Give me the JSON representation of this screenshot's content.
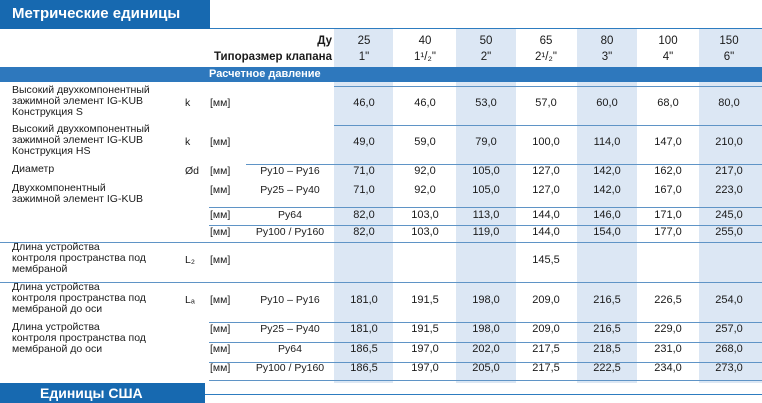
{
  "top_title": "Метрические единицы",
  "bottom_title": "Единицы США",
  "header": {
    "dn_label": "Ду",
    "dn_values": [
      "25",
      "40",
      "50",
      "65",
      "80",
      "100",
      "150"
    ],
    "size_label": "Типоразмер клапана",
    "size_values": [
      "1\"",
      "1¹/₂\"",
      "2\"",
      "2¹/₂\"",
      "3\"",
      "4\"",
      "6\""
    ]
  },
  "section_label": "Расчетное давление",
  "rows": [
    {
      "label": [
        "Высокий двухкомпонентный",
        "зажимной элемент IG-KUB",
        "Конструкция S"
      ],
      "symbol": "k",
      "unit": "[мм]",
      "pressure": "",
      "values": [
        "46,0",
        "46,0",
        "53,0",
        "57,0",
        "60,0",
        "68,0",
        "80,0"
      ]
    },
    {
      "label": [
        "Высокий двухкомпонентный",
        "зажимной элемент IG-KUB",
        "Конструкция HS"
      ],
      "symbol": "k",
      "unit": "[мм]",
      "pressure": "",
      "values": [
        "49,0",
        "59,0",
        "79,0",
        "100,0",
        "114,0",
        "147,0",
        "210,0"
      ]
    },
    {
      "label": [
        "Диаметр"
      ],
      "symbol": "Ød",
      "unit": "[мм]",
      "pressure": "Ру10 – Ру16",
      "values": [
        "71,0",
        "92,0",
        "105,0",
        "127,0",
        "142,0",
        "162,0",
        "217,0"
      ]
    },
    {
      "label": [
        "Двухкомпонентный",
        "зажимной элемент IG-KUB"
      ],
      "symbol": "",
      "unit": "[мм]",
      "pressure": "Ру25 – Ру40",
      "values": [
        "71,0",
        "92,0",
        "105,0",
        "127,0",
        "142,0",
        "167,0",
        "223,0"
      ]
    },
    {
      "label": [],
      "symbol": "",
      "unit": "[мм]",
      "pressure": "Ру64",
      "values": [
        "82,0",
        "103,0",
        "113,0",
        "144,0",
        "146,0",
        "171,0",
        "245,0"
      ]
    },
    {
      "label": [],
      "symbol": "",
      "unit": "[мм]",
      "pressure": "Ру100 / Ру160",
      "values": [
        "82,0",
        "103,0",
        "119,0",
        "144,0",
        "154,0",
        "177,0",
        "255,0"
      ]
    },
    {
      "label": [
        "Длина устройства",
        "контроля пространства под",
        "мембраной"
      ],
      "symbol": "L₂",
      "unit": "[мм]",
      "pressure": "",
      "values": [
        "",
        "",
        "",
        "145,5",
        "",
        "",
        ""
      ]
    },
    {
      "label": [
        "Длина устройства",
        "контроля пространства под",
        "мембраной до оси"
      ],
      "symbol": "Lₐ",
      "unit": "[мм]",
      "pressure": "Ру10 – Ру16",
      "values": [
        "181,0",
        "191,5",
        "198,0",
        "209,0",
        "216,5",
        "226,5",
        "254,0"
      ]
    },
    {
      "label": [
        "Длина устройства",
        "контроля пространства под",
        "мембраной до оси"
      ],
      "symbol": "",
      "unit": "[мм]",
      "pressure": "Ру25 – Ру40",
      "values": [
        "181,0",
        "191,5",
        "198,0",
        "209,0",
        "216,5",
        "229,0",
        "257,0"
      ]
    },
    {
      "label": [],
      "symbol": "",
      "unit": "[мм]",
      "pressure": "Ру64",
      "values": [
        "186,5",
        "197,0",
        "202,0",
        "217,5",
        "218,5",
        "231,0",
        "268,0"
      ]
    },
    {
      "label": [],
      "symbol": "",
      "unit": "[мм]",
      "pressure": "Ру100 / Ру160",
      "values": [
        "186,5",
        "197,0",
        "205,0",
        "217,5",
        "222,5",
        "234,0",
        "273,0"
      ]
    }
  ]
}
